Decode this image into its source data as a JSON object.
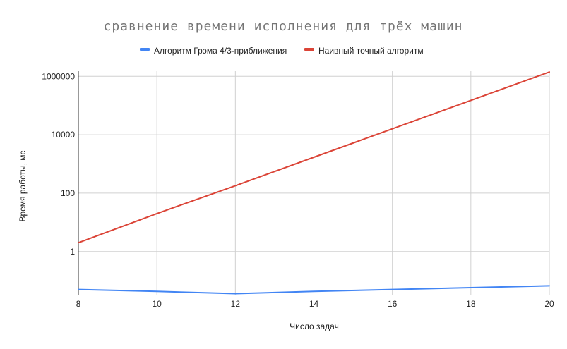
{
  "chart_data": {
    "type": "line",
    "title": "сравнение времени исполнения для трёх машин",
    "xlabel": "Число задач",
    "ylabel": "Время работы, мс",
    "x": [
      8,
      10,
      12,
      14,
      16,
      18,
      20
    ],
    "xlim": [
      8,
      20
    ],
    "x_ticks": [
      "8",
      "10",
      "12",
      "14",
      "16",
      "18",
      "20"
    ],
    "y_scale": "log",
    "ylim": [
      0.0314,
      1500000
    ],
    "y_ticks": [
      {
        "value": 1,
        "label": "1"
      },
      {
        "value": 100,
        "label": "100"
      },
      {
        "value": 10000,
        "label": "10000"
      },
      {
        "value": 1000000,
        "label": "1000000"
      }
    ],
    "grid": true,
    "legend_position": "top",
    "series": [
      {
        "name": "Алгоритм Грэма 4/3-приближения",
        "color": "#4285f4",
        "values": [
          0.05,
          0.043,
          0.036,
          0.043,
          0.05,
          0.058,
          0.067
        ]
      },
      {
        "name": "Наивный точный алгоритм",
        "color": "#db4437",
        "values": [
          2,
          20,
          180,
          1700,
          16000,
          150000,
          1400000
        ]
      }
    ]
  }
}
